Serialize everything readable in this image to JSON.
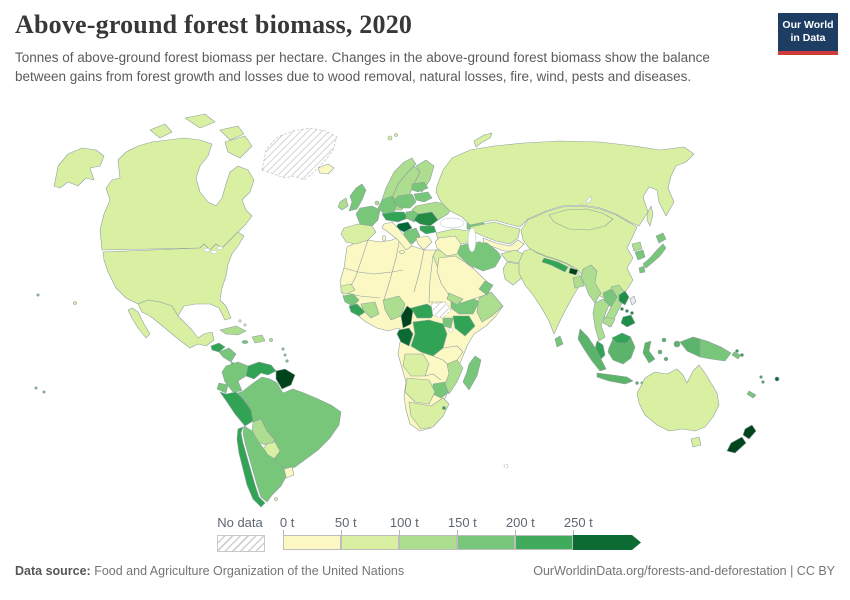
{
  "header": {
    "title": "Above-ground forest biomass, 2020",
    "subtitle": "Tonnes of above-ground forest biomass per hectare. Changes in the above-ground forest biomass show the balance between gains from forest growth and losses due to wood removal, natural losses, fire, wind, pests and diseases.",
    "logo": {
      "line1": "Our World",
      "line2": "in Data"
    }
  },
  "legend": {
    "no_data_label": "No data",
    "bins": [
      {
        "label": "0 t",
        "color": "#fcf8c3"
      },
      {
        "label": "50 t",
        "color": "#d9f0a3"
      },
      {
        "label": "100 t",
        "color": "#addd8e"
      },
      {
        "label": "150 t",
        "color": "#78c679"
      },
      {
        "label": "200 t",
        "color": "#41ab5d"
      },
      {
        "label": "250 t",
        "color": "#0c6b33"
      }
    ]
  },
  "footer": {
    "source_label": "Data source:",
    "source_text": " Food and Agriculture Organization of the United Nations",
    "right_text": "OurWorldinData.org/forests-and-deforestation | CC BY"
  },
  "chart_data": {
    "type": "choropleth-map",
    "title": "Above-ground forest biomass, 2020",
    "unit": "tonnes of above-ground forest biomass per hectare",
    "legend_bins": [
      "0–50 t",
      "50–100 t",
      "100–150 t",
      "150–200 t",
      "200–250 t",
      "250+ t",
      "No data"
    ],
    "regions": {
      "canada": {
        "name": "Canada",
        "bin": "50–100 t",
        "color": "#d9f0a3"
      },
      "united-states": {
        "name": "United States",
        "bin": "50–100 t",
        "color": "#d9f0a3"
      },
      "hawaii": {
        "name": "Hawaii (US)",
        "bin": "50–100 t",
        "color": "#d9f0a3"
      },
      "mexico": {
        "name": "Mexico",
        "bin": "50–100 t",
        "color": "#d9f0a3"
      },
      "greenland": {
        "name": "Greenland",
        "bin": "No data",
        "color": "no-data"
      },
      "iceland": {
        "name": "Iceland",
        "bin": "0–50 t",
        "color": "#fcf8c3"
      },
      "guatemala-belize": {
        "name": "Guatemala & Belize",
        "bin": "200–250 t",
        "color": "#31a354"
      },
      "honduras-nicaragua": {
        "name": "Honduras & Nicaragua",
        "bin": "150–200 t",
        "color": "#78c679"
      },
      "costa-rica-panama": {
        "name": "Costa Rica & Panama",
        "bin": "200–250 t",
        "color": "#31a354"
      },
      "cuba": {
        "name": "Cuba",
        "bin": "100–150 t",
        "color": "#addd8e"
      },
      "hispaniola": {
        "name": "Haiti & Dominican Rep.",
        "bin": "100–150 t",
        "color": "#addd8e"
      },
      "jamaica": {
        "name": "Jamaica",
        "bin": "150–200 t",
        "color": "#78c679"
      },
      "puerto-rico": {
        "name": "Puerto Rico",
        "bin": "100–150 t",
        "color": "#addd8e"
      },
      "bahamas": {
        "name": "Bahamas",
        "bin": "0–50 t",
        "color": "#fcf8c3"
      },
      "lesser-antilles": {
        "name": "Lesser Antilles",
        "bin": "150–200 t",
        "color": "#78c679"
      },
      "colombia": {
        "name": "Colombia",
        "bin": "150–200 t",
        "color": "#78c679"
      },
      "venezuela": {
        "name": "Venezuela",
        "bin": "200–250 t",
        "color": "#31a354"
      },
      "guianas": {
        "name": "Guyana, Suriname & French Guiana",
        "bin": "250+ t",
        "color": "#00441b"
      },
      "ecuador": {
        "name": "Ecuador",
        "bin": "150–200 t",
        "color": "#78c679"
      },
      "peru": {
        "name": "Peru",
        "bin": "200–250 t",
        "color": "#31a354"
      },
      "brazil": {
        "name": "Brazil",
        "bin": "150–200 t",
        "color": "#78c679"
      },
      "bolivia": {
        "name": "Bolivia",
        "bin": "100–150 t",
        "color": "#addd8e"
      },
      "paraguay": {
        "name": "Paraguay",
        "bin": "50–100 t",
        "color": "#d9f0a3"
      },
      "uruguay": {
        "name": "Uruguay",
        "bin": "0–50 t",
        "color": "#fcf8c3"
      },
      "argentina": {
        "name": "Argentina",
        "bin": "150–200 t",
        "color": "#78c679"
      },
      "chile": {
        "name": "Chile",
        "bin": "200–250 t",
        "color": "#31a354"
      },
      "falkland-islands": {
        "name": "Falkland Islands",
        "bin": "50–100 t",
        "color": "#d9f0a3"
      },
      "sahara-drylands": {
        "name": "Northern Africa & Sahel drylands",
        "bin": "0–50 t",
        "color": "#fcf8c3"
      },
      "egypt": {
        "name": "Egypt",
        "bin": "50–100 t",
        "color": "#d9f0a3"
      },
      "senegal": {
        "name": "Senegal & Gambia",
        "bin": "50–100 t",
        "color": "#d9f0a3"
      },
      "guinea": {
        "name": "Guinea",
        "bin": "150–200 t",
        "color": "#78c679"
      },
      "sierra-leone-liberia": {
        "name": "Sierra Leone & Liberia",
        "bin": "200–250 t",
        "color": "#31a354"
      },
      "cote-divoire-ghana": {
        "name": "Côte d'Ivoire & Ghana",
        "bin": "100–150 t",
        "color": "#addd8e"
      },
      "nigeria": {
        "name": "Nigeria",
        "bin": "100–150 t",
        "color": "#addd8e"
      },
      "cameroon": {
        "name": "Cameroon",
        "bin": "250+ t",
        "color": "#00441b"
      },
      "central-african-republic": {
        "name": "Central African Republic",
        "bin": "200–250 t",
        "color": "#31a354"
      },
      "south-sudan": {
        "name": "South Sudan",
        "bin": "No data",
        "color": "no-data"
      },
      "ethiopia": {
        "name": "Ethiopia",
        "bin": "150–200 t",
        "color": "#78c679"
      },
      "somalia": {
        "name": "Somalia",
        "bin": "100–150 t",
        "color": "#addd8e"
      },
      "kenya": {
        "name": "Kenya",
        "bin": "200–250 t",
        "color": "#31a354"
      },
      "uganda": {
        "name": "Uganda",
        "bin": "150–200 t",
        "color": "#78c679"
      },
      "gabon-congo": {
        "name": "Gabon & Congo",
        "bin": "250+ t",
        "color": "#0c6b33"
      },
      "dr-congo": {
        "name": "Democratic Republic of Congo",
        "bin": "200–250 t",
        "color": "#31a354"
      },
      "angola": {
        "name": "Angola",
        "bin": "50–100 t",
        "color": "#d9f0a3"
      },
      "zimbabwe": {
        "name": "Zimbabwe",
        "bin": "150–200 t",
        "color": "#78c679"
      },
      "mozambique": {
        "name": "Mozambique & Malawi",
        "bin": "100–150 t",
        "color": "#addd8e"
      },
      "namibia-botswana": {
        "name": "Namibia & Botswana",
        "bin": "50–100 t",
        "color": "#d9f0a3"
      },
      "south-africa": {
        "name": "South Africa",
        "bin": "50–100 t",
        "color": "#d9f0a3"
      },
      "madagascar": {
        "name": "Madagascar",
        "bin": "150–200 t",
        "color": "#78c679"
      },
      "eswatini": {
        "name": "Eswatini",
        "bin": "200–250 t",
        "color": "#31a354"
      },
      "norway": {
        "name": "Norway",
        "bin": "100–150 t",
        "color": "#addd8e"
      },
      "sweden": {
        "name": "Sweden",
        "bin": "100–150 t",
        "color": "#addd8e"
      },
      "finland": {
        "name": "Finland",
        "bin": "100–150 t",
        "color": "#addd8e"
      },
      "denmark": {
        "name": "Denmark",
        "bin": "100–150 t",
        "color": "#addd8e"
      },
      "svalbard": {
        "name": "Svalbard",
        "bin": "50–100 t",
        "color": "#d9f0a3"
      },
      "united-kingdom": {
        "name": "United Kingdom",
        "bin": "150–200 t",
        "color": "#78c679"
      },
      "ireland": {
        "name": "Ireland",
        "bin": "100–150 t",
        "color": "#addd8e"
      },
      "france": {
        "name": "France",
        "bin": "150–200 t",
        "color": "#78c679"
      },
      "spain-portugal": {
        "name": "Spain & Portugal",
        "bin": "50–100 t",
        "color": "#d9f0a3"
      },
      "germany": {
        "name": "Germany",
        "bin": "150–200 t",
        "color": "#78c679"
      },
      "benelux": {
        "name": "Belgium & Netherlands",
        "bin": "100–150 t",
        "color": "#addd8e"
      },
      "poland": {
        "name": "Poland",
        "bin": "150–200 t",
        "color": "#78c679"
      },
      "central-europe": {
        "name": "Switzerland, Austria & Czechia",
        "bin": "200–250 t",
        "color": "#31a354"
      },
      "slovenia-croatia": {
        "name": "Slovenia & Croatia",
        "bin": "250+ t",
        "color": "#006837"
      },
      "hungary-slovakia": {
        "name": "Hungary & Slovakia",
        "bin": "150–200 t",
        "color": "#78c679"
      },
      "romania": {
        "name": "Romania",
        "bin": "200–250 t",
        "color": "#238b45"
      },
      "western-balkans": {
        "name": "Western Balkans",
        "bin": "150–200 t",
        "color": "#78c679"
      },
      "bulgaria": {
        "name": "Bulgaria",
        "bin": "200–250 t",
        "color": "#31a354"
      },
      "greece": {
        "name": "Greece",
        "bin": "0–50 t",
        "color": "#fcf8c3"
      },
      "italy": {
        "name": "Italy",
        "bin": "0–50 t",
        "color": "#fcf8c3"
      },
      "ukraine": {
        "name": "Ukraine",
        "bin": "100–150 t",
        "color": "#addd8e"
      },
      "belarus": {
        "name": "Belarus",
        "bin": "150–200 t",
        "color": "#78c679"
      },
      "baltic-states": {
        "name": "Baltic states",
        "bin": "150–200 t",
        "color": "#78c679"
      },
      "turkey": {
        "name": "Turkey",
        "bin": "50–100 t",
        "color": "#d9f0a3"
      },
      "caucasus": {
        "name": "Georgia & Azerbaijan",
        "bin": "150–200 t",
        "color": "#78c679"
      },
      "russia": {
        "name": "Russia",
        "bin": "50–100 t",
        "color": "#d9f0a3"
      },
      "kazakhstan": {
        "name": "Kazakhstan",
        "bin": "50–100 t",
        "color": "#d9f0a3"
      },
      "central-asia": {
        "name": "Uzbekistan, Kyrgyzstan & Tajikistan",
        "bin": "0–50 t",
        "color": "#fcf8c3"
      },
      "turkmenistan": {
        "name": "Turkmenistan",
        "bin": "No data",
        "color": "no-data"
      },
      "afghanistan": {
        "name": "Afghanistan",
        "bin": "50–100 t",
        "color": "#d9f0a3"
      },
      "pakistan": {
        "name": "Pakistan",
        "bin": "50–100 t",
        "color": "#d9f0a3"
      },
      "iran": {
        "name": "Iran",
        "bin": "150–200 t",
        "color": "#78c679"
      },
      "iraq-syria": {
        "name": "Iraq & Syria",
        "bin": "0–50 t",
        "color": "#fcf8c3"
      },
      "saudi-arabia": {
        "name": "Saudi Arabia",
        "bin": "0–50 t",
        "color": "#fcf8c3"
      },
      "oman": {
        "name": "Oman",
        "bin": "150–200 t",
        "color": "#78c679"
      },
      "yemen": {
        "name": "Yemen",
        "bin": "100–150 t",
        "color": "#addd8e"
      },
      "india": {
        "name": "India",
        "bin": "50–100 t",
        "color": "#d9f0a3"
      },
      "nepal": {
        "name": "Nepal",
        "bin": "200–250 t",
        "color": "#31a354"
      },
      "bhutan": {
        "name": "Bhutan",
        "bin": "250+ t",
        "color": "#00441b"
      },
      "bangladesh": {
        "name": "Bangladesh",
        "bin": "100–150 t",
        "color": "#addd8e"
      },
      "sri-lanka": {
        "name": "Sri Lanka",
        "bin": "150–200 t",
        "color": "#78c679"
      },
      "china": {
        "name": "China",
        "bin": "50–100 t",
        "color": "#d9f0a3"
      },
      "mongolia": {
        "name": "Mongolia",
        "bin": "50–100 t",
        "color": "#d9f0a3"
      },
      "taiwan": {
        "name": "Taiwan",
        "bin": "No data",
        "color": "#ededed"
      },
      "myanmar": {
        "name": "Myanmar",
        "bin": "100–150 t",
        "color": "#addd8e"
      },
      "thailand": {
        "name": "Thailand",
        "bin": "100–150 t",
        "color": "#addd8e"
      },
      "laos": {
        "name": "Laos",
        "bin": "150–200 t",
        "color": "#78c679"
      },
      "vietnam": {
        "name": "Vietnam",
        "bin": "100–150 t",
        "color": "#addd8e"
      },
      "cambodia": {
        "name": "Cambodia",
        "bin": "100–150 t",
        "color": "#addd8e"
      },
      "malaysia": {
        "name": "Malaysia",
        "bin": "200–250 t",
        "color": "#31a354"
      },
      "indonesia": {
        "name": "Indonesia",
        "bin": "~200 t",
        "color": "#5cb46a"
      },
      "timor-leste": {
        "name": "Timor-Leste",
        "bin": "100–150 t",
        "color": "#addd8e"
      },
      "philippines": {
        "name": "Philippines",
        "bin": "~250 t",
        "color": "#1f8f48"
      },
      "north-korea": {
        "name": "North Korea",
        "bin": "100–150 t",
        "color": "#addd8e"
      },
      "south-korea": {
        "name": "South Korea",
        "bin": "150–200 t",
        "color": "#78c679"
      },
      "japan": {
        "name": "Japan",
        "bin": "150–200 t",
        "color": "#78c679"
      },
      "australia": {
        "name": "Australia",
        "bin": "50–100 t",
        "color": "#d9f0a3"
      },
      "papua-new-guinea": {
        "name": "Papua New Guinea",
        "bin": "150–200 t",
        "color": "#78c679"
      },
      "new-zealand": {
        "name": "New Zealand",
        "bin": "250+ t",
        "color": "#00441b"
      },
      "fiji": {
        "name": "Fiji",
        "bin": "250+ t",
        "color": "#0c6b33"
      },
      "new-caledonia": {
        "name": "New Caledonia",
        "bin": "150–200 t",
        "color": "#78c679"
      },
      "vanuatu": {
        "name": "Vanuatu",
        "bin": "200–250 t",
        "color": "#31a354"
      },
      "solomon-islands": {
        "name": "Solomon Islands",
        "bin": "200–250 t",
        "color": "#31a354"
      },
      "pacific-islands": {
        "name": "Pacific islands",
        "bin": "150–200 t",
        "color": "#78c679"
      },
      "kerguelen": {
        "name": "French Southern Territories",
        "bin": "No data",
        "color": "no-data"
      }
    }
  }
}
